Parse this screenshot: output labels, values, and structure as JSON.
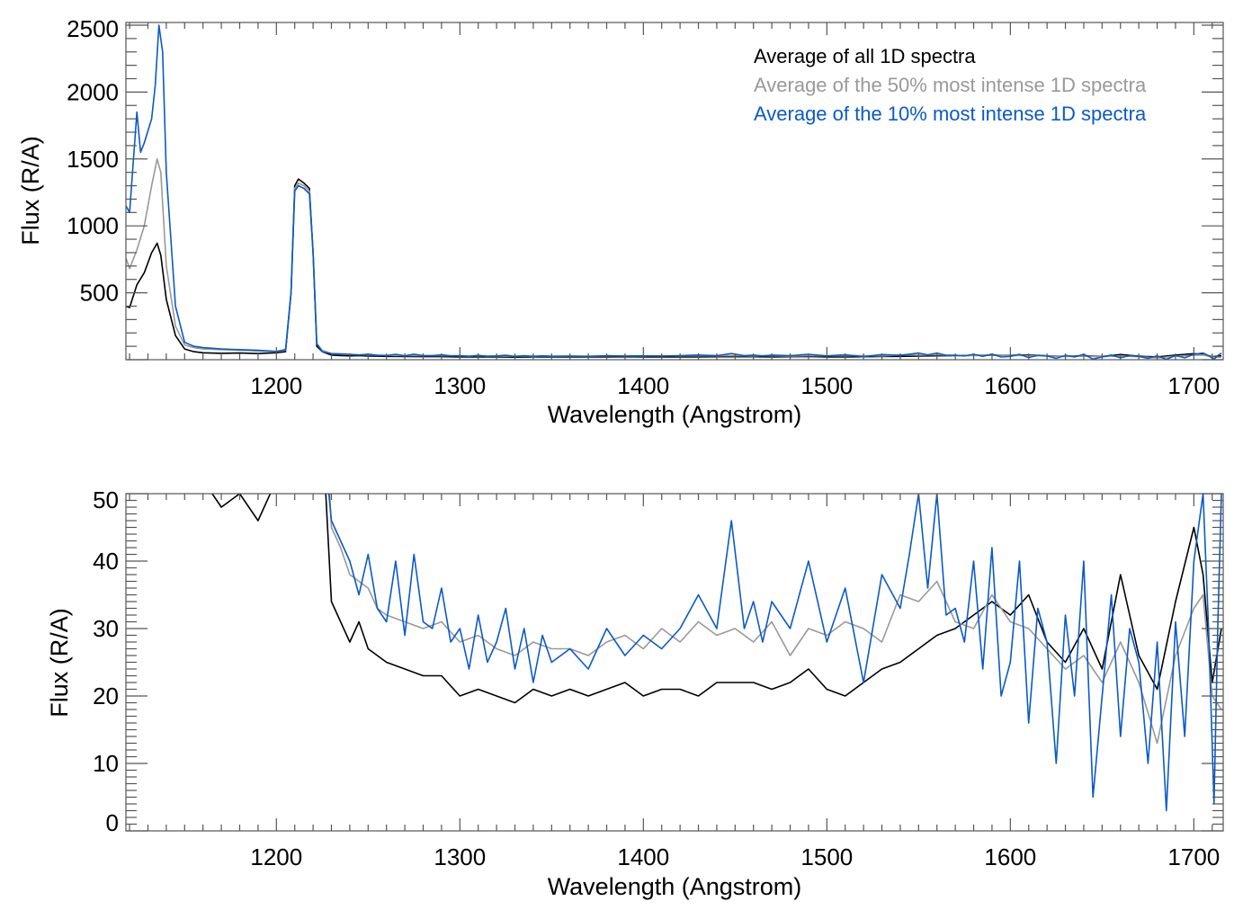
{
  "chart_data": {
    "type": "line",
    "legend": {
      "placement": "top-right",
      "entries": [
        {
          "label": "Average of all 1D spectra",
          "color": "#000000"
        },
        {
          "label": "Average of the 50% most intense 1D spectra",
          "color": "#999999"
        },
        {
          "label": "Average of the 10% most intense 1D spectra",
          "color": "#0a5ac8"
        }
      ]
    },
    "series": [
      {
        "name": "all",
        "color": "#000000",
        "x": [
          1118,
          1120,
          1124,
          1128,
          1132,
          1135,
          1137,
          1140,
          1145,
          1150,
          1155,
          1160,
          1170,
          1180,
          1190,
          1200,
          1205,
          1208,
          1210,
          1212,
          1215,
          1218,
          1220,
          1222,
          1225,
          1230,
          1235,
          1240,
          1245,
          1250,
          1255,
          1260,
          1270,
          1280,
          1290,
          1300,
          1310,
          1320,
          1330,
          1340,
          1350,
          1360,
          1370,
          1380,
          1390,
          1400,
          1410,
          1420,
          1430,
          1440,
          1450,
          1460,
          1470,
          1480,
          1490,
          1500,
          1510,
          1520,
          1530,
          1540,
          1550,
          1560,
          1570,
          1580,
          1590,
          1600,
          1610,
          1620,
          1630,
          1640,
          1650,
          1660,
          1670,
          1680,
          1690,
          1700,
          1705,
          1710,
          1715
        ],
        "y": [
          400,
          390,
          560,
          650,
          800,
          870,
          780,
          450,
          180,
          80,
          60,
          52,
          48,
          50,
          46,
          52,
          60,
          500,
          1300,
          1350,
          1320,
          1280,
          800,
          100,
          60,
          34,
          31,
          28,
          31,
          27,
          26,
          25,
          24,
          23,
          23,
          20,
          21,
          20,
          19,
          21,
          20,
          21,
          20,
          21,
          22,
          20,
          21,
          21,
          20,
          22,
          22,
          22,
          21,
          22,
          24,
          21,
          20,
          22,
          24,
          25,
          27,
          29,
          30,
          32,
          34,
          32,
          35,
          28,
          25,
          30,
          24,
          38,
          26,
          21,
          34,
          45,
          38,
          22,
          30
        ]
      },
      {
        "name": "top50",
        "color": "#999999",
        "x": [
          1118,
          1120,
          1124,
          1128,
          1132,
          1135,
          1137,
          1140,
          1145,
          1150,
          1155,
          1160,
          1170,
          1180,
          1190,
          1200,
          1205,
          1208,
          1210,
          1212,
          1215,
          1218,
          1220,
          1222,
          1225,
          1230,
          1235,
          1240,
          1245,
          1250,
          1255,
          1260,
          1270,
          1280,
          1290,
          1300,
          1310,
          1320,
          1330,
          1340,
          1350,
          1360,
          1370,
          1380,
          1390,
          1400,
          1410,
          1420,
          1430,
          1440,
          1450,
          1460,
          1470,
          1480,
          1490,
          1500,
          1510,
          1520,
          1530,
          1540,
          1550,
          1560,
          1570,
          1580,
          1590,
          1600,
          1610,
          1620,
          1630,
          1640,
          1650,
          1660,
          1670,
          1680,
          1690,
          1700,
          1705,
          1710,
          1715
        ],
        "y": [
          760,
          680,
          820,
          1000,
          1300,
          1500,
          1400,
          700,
          250,
          110,
          90,
          80,
          75,
          70,
          65,
          60,
          70,
          500,
          1280,
          1320,
          1300,
          1260,
          800,
          120,
          70,
          45,
          42,
          38,
          37,
          36,
          33,
          32,
          31,
          30,
          31,
          28,
          29,
          27,
          26,
          28,
          27,
          27,
          26,
          28,
          29,
          27,
          30,
          28,
          31,
          29,
          30,
          28,
          31,
          26,
          30,
          29,
          31,
          30,
          28,
          35,
          34,
          37,
          31,
          30,
          35,
          31,
          30,
          27,
          24,
          26,
          22,
          28,
          22,
          13,
          26,
          33,
          35,
          20,
          18
        ]
      },
      {
        "name": "top10",
        "color": "#0a5ac8",
        "x": [
          1118,
          1120,
          1124,
          1126,
          1128,
          1132,
          1134,
          1136,
          1138,
          1140,
          1145,
          1150,
          1155,
          1160,
          1170,
          1180,
          1190,
          1200,
          1205,
          1208,
          1210,
          1212,
          1215,
          1218,
          1220,
          1222,
          1225,
          1230,
          1235,
          1240,
          1245,
          1250,
          1255,
          1260,
          1265,
          1270,
          1275,
          1280,
          1285,
          1290,
          1295,
          1300,
          1305,
          1310,
          1315,
          1320,
          1325,
          1330,
          1335,
          1340,
          1345,
          1350,
          1360,
          1370,
          1380,
          1390,
          1400,
          1410,
          1420,
          1430,
          1440,
          1448,
          1455,
          1460,
          1465,
          1470,
          1480,
          1490,
          1500,
          1510,
          1520,
          1530,
          1540,
          1545,
          1550,
          1555,
          1560,
          1565,
          1570,
          1575,
          1580,
          1585,
          1590,
          1595,
          1600,
          1605,
          1610,
          1615,
          1620,
          1625,
          1630,
          1635,
          1640,
          1645,
          1650,
          1655,
          1660,
          1665,
          1670,
          1675,
          1680,
          1685,
          1690,
          1695,
          1700,
          1705,
          1708,
          1711,
          1713,
          1715
        ],
        "y": [
          1150,
          1100,
          1850,
          1550,
          1620,
          1800,
          2050,
          2500,
          2300,
          1400,
          400,
          130,
          100,
          90,
          80,
          75,
          70,
          62,
          75,
          500,
          1260,
          1300,
          1280,
          1240,
          800,
          120,
          60,
          46,
          43,
          40,
          35,
          41,
          33,
          31,
          40,
          29,
          41,
          31,
          30,
          36,
          28,
          30,
          24,
          32,
          25,
          28,
          33,
          24,
          30,
          22,
          29,
          25,
          27,
          24,
          30,
          26,
          29,
          27,
          30,
          35,
          30,
          46,
          30,
          34,
          28,
          34,
          30,
          40,
          28,
          36,
          22,
          38,
          33,
          41,
          50,
          36,
          50,
          32,
          33,
          28,
          40,
          24,
          42,
          20,
          25,
          40,
          16,
          33,
          28,
          10,
          32,
          20,
          40,
          5,
          20,
          35,
          14,
          30,
          25,
          10,
          28,
          3,
          31,
          14,
          40,
          50,
          30,
          4,
          30,
          50
        ]
      }
    ],
    "panels": [
      {
        "xlabel": "Wavelength (Angstrom)",
        "ylabel": "Flux (R/A)",
        "xlim": [
          1118,
          1716
        ],
        "ylim": [
          0,
          2520
        ],
        "xticks": [
          "1200",
          "1300",
          "1400",
          "1500",
          "1600",
          "1700"
        ],
        "yticks": [
          "500",
          "1000",
          "1500",
          "2000",
          "2500"
        ]
      },
      {
        "xlabel": "Wavelength (Angstrom)",
        "ylabel": "Flux (R/A)",
        "xlim": [
          1118,
          1716
        ],
        "ylim": [
          0,
          50
        ],
        "xticks": [
          "1200",
          "1300",
          "1400",
          "1500",
          "1600",
          "1700"
        ],
        "yticks": [
          "0",
          "10",
          "20",
          "30",
          "40",
          "50"
        ]
      }
    ]
  }
}
